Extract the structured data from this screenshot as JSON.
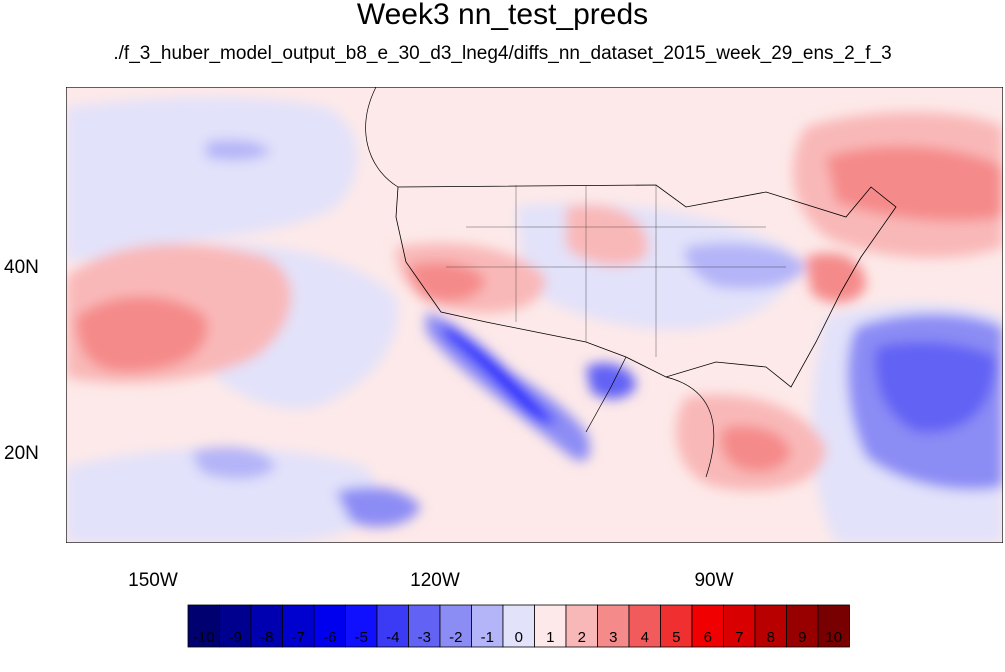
{
  "title": "Week3 nn_test_preds",
  "subtitle": "./f_3_huber_model_output_b8_e_30_d3_lneg4/diffs_nn_dataset_2015_week_29_ens_2_f_3",
  "map": {
    "lon_range": [
      -160,
      -60
    ],
    "lat_range": [
      11,
      60
    ],
    "lat_ticks": [
      "40N",
      "20N"
    ],
    "lon_ticks": [
      "150W",
      "120W",
      "90W"
    ]
  },
  "colorbar": {
    "labels": [
      "-10",
      "-9",
      "-8",
      "-7",
      "-6",
      "-5",
      "-4",
      "-3",
      "-2",
      "-1",
      "0",
      "1",
      "2",
      "3",
      "4",
      "5",
      "6",
      "7",
      "8",
      "9",
      "10"
    ],
    "colors": [
      "#000070",
      "#00008f",
      "#0000b0",
      "#0000cf",
      "#0000ef",
      "#1010ff",
      "#3b3bf5",
      "#6262f5",
      "#8c8cf5",
      "#b4b4f8",
      "#e2e2fa",
      "#fde9e9",
      "#f9b8b8",
      "#f58a8a",
      "#f25b5b",
      "#f03030",
      "#f00000",
      "#d80000",
      "#b80000",
      "#980000",
      "#780000"
    ]
  }
}
